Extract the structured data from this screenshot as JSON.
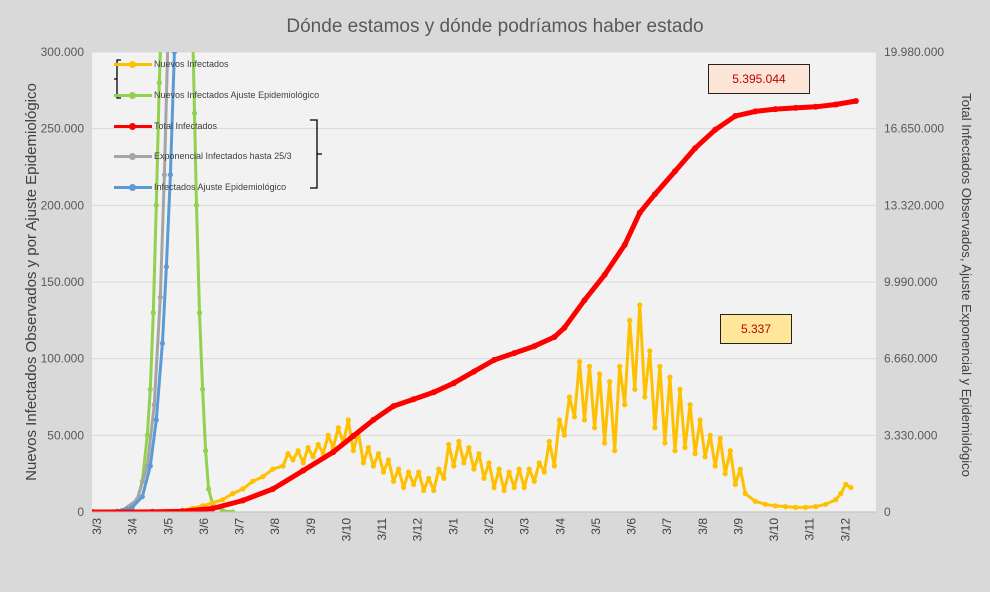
{
  "chart_data": {
    "type": "line",
    "title": "Dónde estamos y dónde podríamos haber estado",
    "ylabel_left": "Nuevos Infectados Observados y por Ajuste Epidemiológico",
    "ylabel_right": "Total Infectados Observados, Ajuste Exponencial y Epidemiológico",
    "y_left_ticks": [
      "0",
      "50.000",
      "100.000",
      "150.000",
      "200.000",
      "250.000",
      "300.000"
    ],
    "y_left_range": [
      0,
      300000
    ],
    "y_right_ticks": [
      "0",
      "3.330.000",
      "6.660.000",
      "9.990.000",
      "13.320.000",
      "16.650.000",
      "19.980.000"
    ],
    "y_right_range": [
      0,
      19980000
    ],
    "x_ticks": [
      "3/3",
      "3/4",
      "3/5",
      "3/6",
      "3/7",
      "3/8",
      "3/9",
      "3/10",
      "3/11",
      "3/12",
      "3/1",
      "3/2",
      "3/3",
      "3/4",
      "3/5",
      "3/6",
      "3/7",
      "3/8",
      "3/9",
      "3/10",
      "3/11",
      "3/12"
    ],
    "x_unit_note": "days since first tick (approx. 31 days per tick)",
    "grid": "horizontal",
    "legend_position": "top-left",
    "series": [
      {
        "name": "Nuevos Infectados",
        "axis": "left",
        "color": "#ffc000",
        "points": [
          [
            0,
            0
          ],
          [
            30,
            0
          ],
          [
            60,
            0
          ],
          [
            75,
            500
          ],
          [
            90,
            1200
          ],
          [
            100,
            2500
          ],
          [
            110,
            4000
          ],
          [
            120,
            6000
          ],
          [
            130,
            8000
          ],
          [
            140,
            12000
          ],
          [
            150,
            15000
          ],
          [
            160,
            20000
          ],
          [
            170,
            23000
          ],
          [
            180,
            28000
          ],
          [
            190,
            30000
          ],
          [
            195,
            38000
          ],
          [
            200,
            34000
          ],
          [
            205,
            40000
          ],
          [
            210,
            32000
          ],
          [
            215,
            42000
          ],
          [
            220,
            36000
          ],
          [
            225,
            44000
          ],
          [
            230,
            38000
          ],
          [
            235,
            50000
          ],
          [
            240,
            42000
          ],
          [
            245,
            55000
          ],
          [
            250,
            45000
          ],
          [
            255,
            60000
          ],
          [
            260,
            40000
          ],
          [
            265,
            52000
          ],
          [
            270,
            32000
          ],
          [
            275,
            42000
          ],
          [
            280,
            30000
          ],
          [
            285,
            38000
          ],
          [
            290,
            26000
          ],
          [
            295,
            34000
          ],
          [
            300,
            20000
          ],
          [
            305,
            28000
          ],
          [
            310,
            16000
          ],
          [
            315,
            26000
          ],
          [
            320,
            18000
          ],
          [
            325,
            26000
          ],
          [
            330,
            14000
          ],
          [
            335,
            22000
          ],
          [
            340,
            14000
          ],
          [
            345,
            28000
          ],
          [
            350,
            22000
          ],
          [
            355,
            44000
          ],
          [
            360,
            30000
          ],
          [
            365,
            46000
          ],
          [
            370,
            32000
          ],
          [
            375,
            42000
          ],
          [
            380,
            28000
          ],
          [
            385,
            38000
          ],
          [
            390,
            22000
          ],
          [
            395,
            32000
          ],
          [
            400,
            16000
          ],
          [
            405,
            28000
          ],
          [
            410,
            14000
          ],
          [
            415,
            26000
          ],
          [
            420,
            16000
          ],
          [
            425,
            28000
          ],
          [
            430,
            16000
          ],
          [
            435,
            28000
          ],
          [
            440,
            20000
          ],
          [
            445,
            32000
          ],
          [
            450,
            26000
          ],
          [
            455,
            46000
          ],
          [
            460,
            30000
          ],
          [
            465,
            60000
          ],
          [
            470,
            50000
          ],
          [
            475,
            75000
          ],
          [
            480,
            62000
          ],
          [
            485,
            98000
          ],
          [
            490,
            60000
          ],
          [
            495,
            95000
          ],
          [
            500,
            55000
          ],
          [
            505,
            90000
          ],
          [
            510,
            45000
          ],
          [
            515,
            85000
          ],
          [
            520,
            40000
          ],
          [
            525,
            95000
          ],
          [
            530,
            70000
          ],
          [
            535,
            125000
          ],
          [
            540,
            80000
          ],
          [
            545,
            135000
          ],
          [
            550,
            75000
          ],
          [
            555,
            105000
          ],
          [
            560,
            55000
          ],
          [
            565,
            95000
          ],
          [
            570,
            45000
          ],
          [
            575,
            88000
          ],
          [
            580,
            40000
          ],
          [
            585,
            80000
          ],
          [
            590,
            42000
          ],
          [
            595,
            70000
          ],
          [
            600,
            38000
          ],
          [
            605,
            60000
          ],
          [
            610,
            36000
          ],
          [
            615,
            50000
          ],
          [
            620,
            30000
          ],
          [
            625,
            48000
          ],
          [
            630,
            25000
          ],
          [
            635,
            40000
          ],
          [
            640,
            18000
          ],
          [
            645,
            28000
          ],
          [
            650,
            12000
          ],
          [
            660,
            7000
          ],
          [
            670,
            5000
          ],
          [
            680,
            4000
          ],
          [
            690,
            3500
          ],
          [
            700,
            3000
          ],
          [
            710,
            3000
          ],
          [
            720,
            3500
          ],
          [
            730,
            5000
          ],
          [
            740,
            8000
          ],
          [
            745,
            12000
          ],
          [
            750,
            18000
          ],
          [
            755,
            16000
          ]
        ]
      },
      {
        "name": "Nuevos Infectados Ajuste Epidemiológico",
        "axis": "left",
        "color": "#92d050",
        "points": [
          [
            0,
            0
          ],
          [
            20,
            200
          ],
          [
            30,
            800
          ],
          [
            40,
            3000
          ],
          [
            45,
            8000
          ],
          [
            50,
            20000
          ],
          [
            55,
            50000
          ],
          [
            58,
            80000
          ],
          [
            61,
            130000
          ],
          [
            64,
            200000
          ],
          [
            67,
            280000
          ],
          [
            69,
            320000
          ],
          [
            100,
            320000
          ],
          [
            102,
            260000
          ],
          [
            104,
            200000
          ],
          [
            107,
            130000
          ],
          [
            110,
            80000
          ],
          [
            113,
            40000
          ],
          [
            116,
            15000
          ],
          [
            120,
            5000
          ],
          [
            130,
            800
          ],
          [
            140,
            0
          ]
        ]
      },
      {
        "name": "Total Infectados",
        "axis": "right",
        "color": "#ff0000",
        "points": [
          [
            0,
            0
          ],
          [
            60,
            5000
          ],
          [
            90,
            30000
          ],
          [
            120,
            150000
          ],
          [
            150,
            500000
          ],
          [
            180,
            1000000
          ],
          [
            210,
            1800000
          ],
          [
            240,
            2600000
          ],
          [
            260,
            3300000
          ],
          [
            280,
            4000000
          ],
          [
            300,
            4600000
          ],
          [
            320,
            4900000
          ],
          [
            340,
            5200000
          ],
          [
            360,
            5600000
          ],
          [
            380,
            6100000
          ],
          [
            400,
            6600000
          ],
          [
            420,
            6900000
          ],
          [
            440,
            7200000
          ],
          [
            460,
            7600000
          ],
          [
            470,
            8000000
          ],
          [
            490,
            9200000
          ],
          [
            510,
            10300000
          ],
          [
            530,
            11600000
          ],
          [
            545,
            13000000
          ],
          [
            560,
            13800000
          ],
          [
            580,
            14800000
          ],
          [
            600,
            15800000
          ],
          [
            620,
            16600000
          ],
          [
            640,
            17200000
          ],
          [
            660,
            17400000
          ],
          [
            680,
            17500000
          ],
          [
            700,
            17550000
          ],
          [
            720,
            17600000
          ],
          [
            740,
            17700000
          ],
          [
            760,
            17850000
          ]
        ]
      },
      {
        "name": "Exponencial Infectados hasta 25/3",
        "axis": "left",
        "color": "#a5a5a5",
        "points": [
          [
            0,
            0
          ],
          [
            30,
            1000
          ],
          [
            45,
            8000
          ],
          [
            55,
            30000
          ],
          [
            62,
            70000
          ],
          [
            68,
            140000
          ],
          [
            72,
            220000
          ],
          [
            76,
            320000
          ]
        ]
      },
      {
        "name": "Infectados Ajuste Epidemiológico",
        "axis": "left",
        "color": "#5b9bd5",
        "points": [
          [
            0,
            0
          ],
          [
            25,
            500
          ],
          [
            40,
            3000
          ],
          [
            50,
            10000
          ],
          [
            58,
            30000
          ],
          [
            64,
            60000
          ],
          [
            70,
            110000
          ],
          [
            74,
            160000
          ],
          [
            78,
            220000
          ],
          [
            82,
            300000
          ],
          [
            84,
            330000
          ]
        ]
      }
    ],
    "annotations": [
      {
        "text": "5.395.044",
        "bg": "#fce4d6",
        "color": "#c00000"
      },
      {
        "text": "5.337",
        "bg": "#ffe699",
        "color": "#c00000"
      }
    ]
  }
}
